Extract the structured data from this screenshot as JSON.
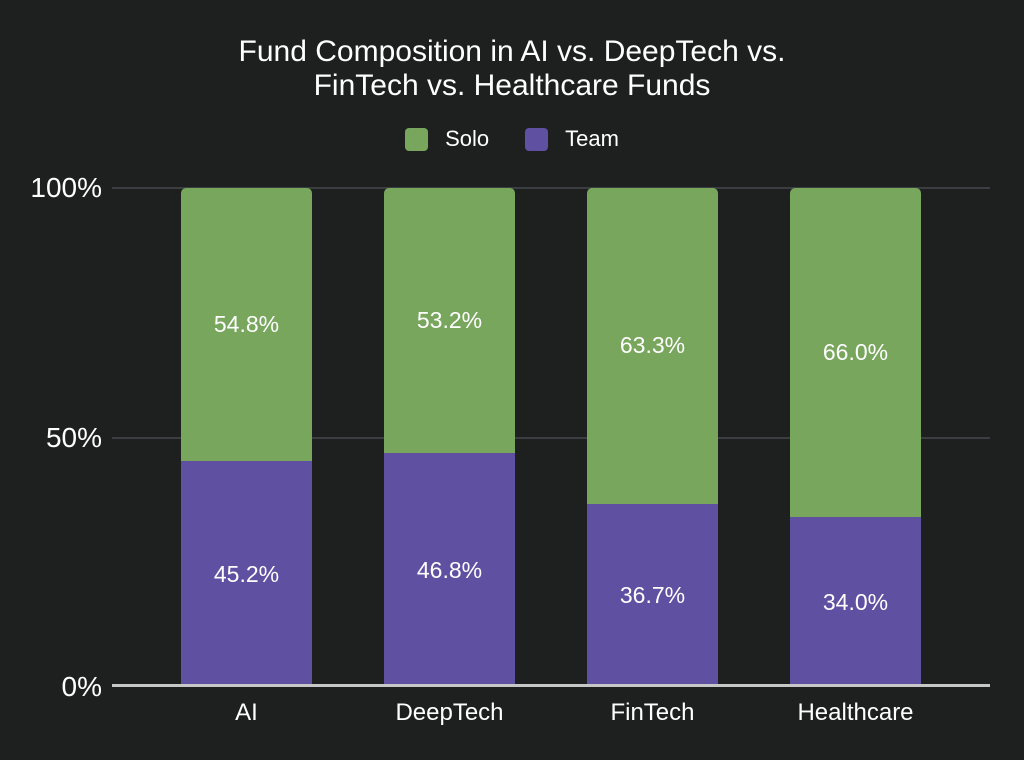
{
  "page": {
    "background": "#1e1f1f"
  },
  "chart_data": {
    "type": "bar",
    "stacked": true,
    "percent_stacked": true,
    "title": "Fund Composition in AI vs. DeepTech vs. FinTech vs. Healthcare Funds",
    "title_lines": [
      "Fund Composition in AI vs. DeepTech vs.",
      "FinTech vs. Healthcare Funds"
    ],
    "categories": [
      "AI",
      "DeepTech",
      "FinTech",
      "Healthcare"
    ],
    "series": [
      {
        "name": "Solo",
        "color": "#77a65c",
        "stack_position": "top",
        "values": [
          54.8,
          53.2,
          63.3,
          66.0
        ],
        "labels": [
          "54.8%",
          "53.2%",
          "63.3%",
          "66.0%"
        ]
      },
      {
        "name": "Team",
        "color": "#5f50a1",
        "stack_position": "bottom",
        "values": [
          45.2,
          46.8,
          36.7,
          34.0
        ],
        "labels": [
          "45.2%",
          "46.8%",
          "36.7%",
          "34.0%"
        ]
      }
    ],
    "y_axis": {
      "min": 0,
      "max": 100,
      "unit": "%",
      "ticks": [
        {
          "label": "100%",
          "value": 100
        },
        {
          "label": "50%",
          "value": 50
        },
        {
          "label": "0%",
          "value": 0
        }
      ]
    },
    "legend": {
      "position": "top",
      "entries": [
        {
          "label": "Solo",
          "color": "#77a65c"
        },
        {
          "label": "Team",
          "color": "#5f50a1"
        }
      ]
    },
    "grid": {
      "line_color": "#3b3e40",
      "axis_line_color": "#c7c7c7"
    },
    "label_color": "#ffffff"
  }
}
